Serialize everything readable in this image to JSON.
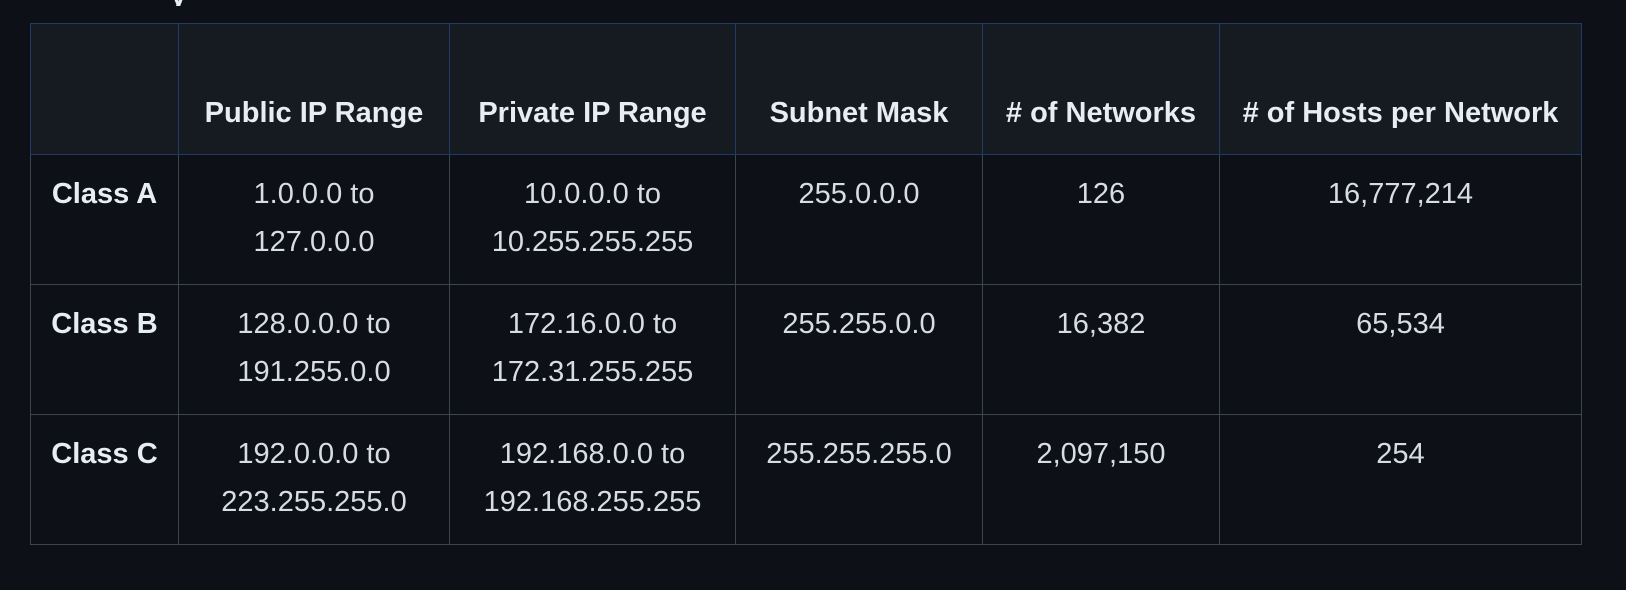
{
  "top_fragment": "y",
  "table": {
    "headers": [
      "",
      "Public IP Range",
      "Private IP Range",
      "Subnet Mask",
      "# of Networks",
      "# of Hosts per Network"
    ],
    "rows": [
      {
        "class": "Class A",
        "public_range": "1.0.0.0 to 127.0.0.0",
        "private_range": "10.0.0.0 to 10.255.255.255",
        "subnet_mask": "255.0.0.0",
        "networks": "126",
        "hosts": "16,777,214"
      },
      {
        "class": "Class B",
        "public_range": "128.0.0.0 to 191.255.0.0",
        "private_range": "172.16.0.0 to 172.31.255.255",
        "subnet_mask": "255.255.0.0",
        "networks": "16,382",
        "hosts": "65,534"
      },
      {
        "class": "Class C",
        "public_range": "192.0.0.0 to 223.255.255.0",
        "private_range": "192.168.0.0 to 192.168.255.255",
        "subnet_mask": "255.255.255.0",
        "networks": "2,097,150",
        "hosts": "254"
      }
    ]
  }
}
